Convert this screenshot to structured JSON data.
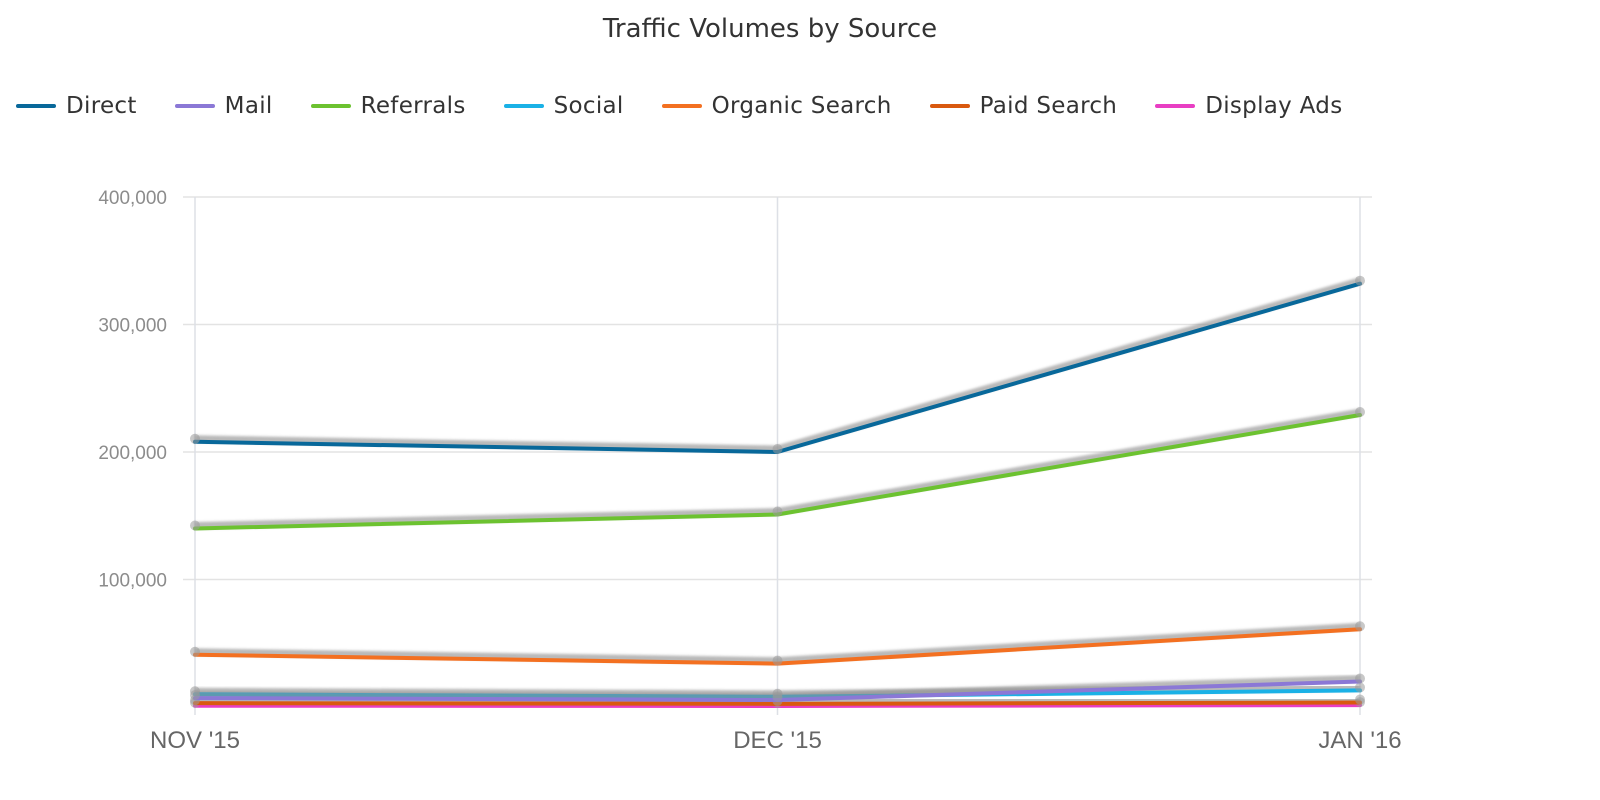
{
  "chart_data": {
    "type": "line",
    "title": "Traffic Volumes by Source",
    "categories": [
      "NOV '15",
      "DEC '15",
      "JAN '16"
    ],
    "ylim": [
      0,
      400000
    ],
    "yticks": [
      100000,
      200000,
      300000,
      400000
    ],
    "ytick_labels": [
      "100,000",
      "200,000",
      "300,000",
      "400,000"
    ],
    "xlabel": "",
    "ylabel": "",
    "legend_position": "top-left",
    "grid": true,
    "series": [
      {
        "name": "Direct",
        "color": "#08689a",
        "values": [
          208000,
          200000,
          332000
        ]
      },
      {
        "name": "Mail",
        "color": "#8b78d6",
        "values": [
          7000,
          5500,
          20000
        ]
      },
      {
        "name": "Referrals",
        "color": "#6cc230",
        "values": [
          140000,
          151000,
          229000
        ]
      },
      {
        "name": "Social",
        "color": "#1ab1e6",
        "values": [
          10000,
          8000,
          13000
        ]
      },
      {
        "name": "Organic Search",
        "color": "#f37021",
        "values": [
          41000,
          34000,
          61000
        ]
      },
      {
        "name": "Paid Search",
        "color": "#d9590f",
        "values": [
          3000,
          2500,
          3500
        ]
      },
      {
        "name": "Display Ads",
        "color": "#e83ec3",
        "values": [
          1000,
          800,
          1500
        ]
      }
    ]
  }
}
